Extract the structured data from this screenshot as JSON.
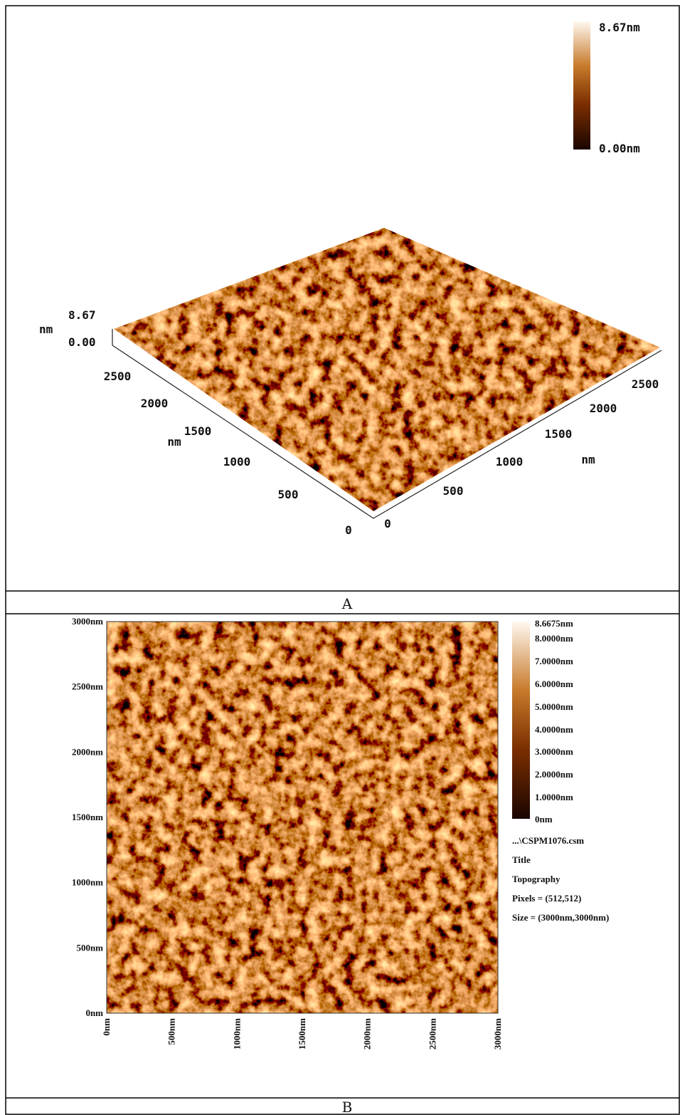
{
  "panels": [
    {
      "label": "A",
      "colorbar": {
        "max": "8.67nm",
        "min": "0.00nm"
      },
      "z_axis": {
        "unit": "nm",
        "ticks": [
          "8.67",
          "0.00"
        ]
      },
      "left_axis": {
        "unit": "nm",
        "ticks": [
          "0",
          "500",
          "1000",
          "1500",
          "2000",
          "2500"
        ]
      },
      "right_axis": {
        "unit": "nm",
        "ticks": [
          "0",
          "500",
          "1000",
          "1500",
          "2000",
          "2500"
        ]
      }
    },
    {
      "label": "B",
      "y_ticks": [
        "0nm",
        "500nm",
        "1000nm",
        "1500nm",
        "2000nm",
        "2500nm",
        "3000nm"
      ],
      "x_ticks": [
        "0nm",
        "500nm",
        "1000nm",
        "1500nm",
        "2000nm",
        "2500nm",
        "3000nm"
      ],
      "colorbar_ticks": [
        "0nm",
        "1.0000nm",
        "2.0000nm",
        "3.0000nm",
        "4.0000nm",
        "5.0000nm",
        "6.0000nm",
        "7.0000nm",
        "8.0000nm",
        "8.6675nm"
      ],
      "info": [
        "...\\CSPM1076.csm",
        "Title",
        "Topography",
        "Pixels = (512,512)",
        "Size = (3000nm,3000nm)"
      ]
    }
  ]
}
